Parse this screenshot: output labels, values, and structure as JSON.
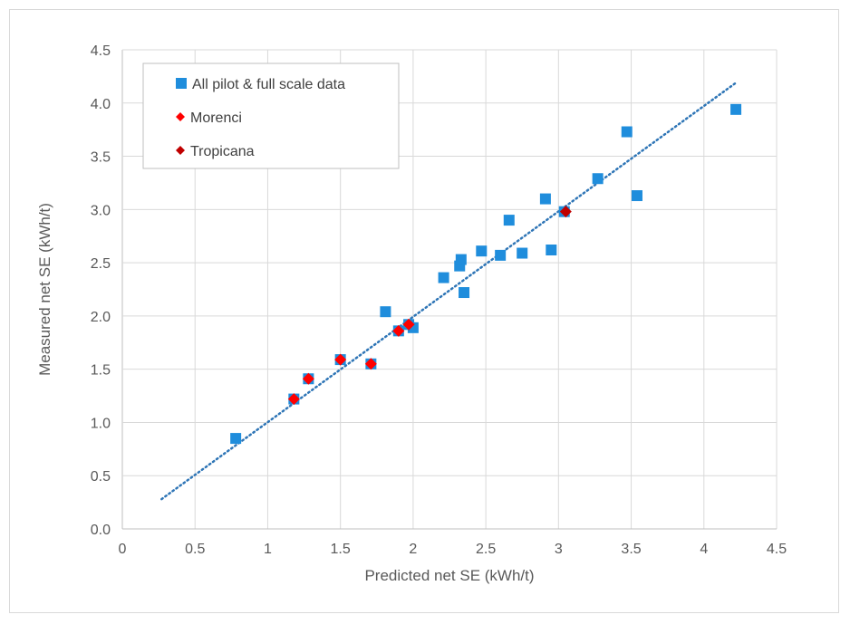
{
  "chart_data": {
    "type": "scatter",
    "title": "",
    "xlabel": "Predicted net SE (kWh/t)",
    "ylabel": "Measured net SE (kWh/t)",
    "xlim": [
      0,
      4.5
    ],
    "ylim": [
      0,
      4.5
    ],
    "x_ticks": [
      "0",
      "0.5",
      "1",
      "1.5",
      "2",
      "2.5",
      "3",
      "3.5",
      "4",
      "4.5"
    ],
    "y_ticks": [
      "0.0",
      "0.5",
      "1.0",
      "1.5",
      "2.0",
      "2.5",
      "3.0",
      "3.5",
      "4.0",
      "4.5"
    ],
    "grid": true,
    "legend_position": "top-left",
    "series": [
      {
        "name": "All pilot & full scale data",
        "marker": "square",
        "color": "#1f8ddc",
        "points": [
          [
            0.78,
            0.85
          ],
          [
            1.18,
            1.22
          ],
          [
            1.28,
            1.41
          ],
          [
            1.5,
            1.59
          ],
          [
            1.71,
            1.55
          ],
          [
            1.81,
            2.04
          ],
          [
            1.9,
            1.86
          ],
          [
            1.97,
            1.92
          ],
          [
            2.0,
            1.89
          ],
          [
            2.21,
            2.36
          ],
          [
            2.32,
            2.47
          ],
          [
            2.33,
            2.53
          ],
          [
            2.35,
            2.22
          ],
          [
            2.47,
            2.61
          ],
          [
            2.6,
            2.57
          ],
          [
            2.66,
            2.9
          ],
          [
            2.75,
            2.59
          ],
          [
            2.91,
            3.1
          ],
          [
            2.95,
            2.62
          ],
          [
            3.04,
            2.98
          ],
          [
            3.27,
            3.29
          ],
          [
            3.47,
            3.73
          ],
          [
            3.54,
            3.13
          ],
          [
            4.22,
            3.94
          ]
        ]
      },
      {
        "name": "Morenci",
        "marker": "diamond",
        "color": "#ff0000",
        "points": [
          [
            1.18,
            1.22
          ],
          [
            1.28,
            1.41
          ],
          [
            1.5,
            1.59
          ],
          [
            1.71,
            1.55
          ],
          [
            1.9,
            1.86
          ],
          [
            1.97,
            1.92
          ]
        ]
      },
      {
        "name": "Tropicana",
        "marker": "diamond",
        "color": "#c00000",
        "points": [
          [
            3.05,
            2.98
          ]
        ]
      }
    ],
    "trendline": {
      "style": "dotted",
      "color": "#2e75b6",
      "points": [
        [
          0.27,
          0.28
        ],
        [
          4.22,
          4.19
        ]
      ]
    }
  }
}
